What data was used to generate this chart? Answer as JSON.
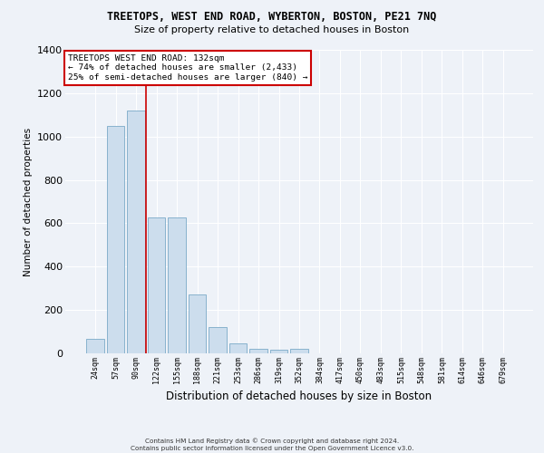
{
  "title": "TREETOPS, WEST END ROAD, WYBERTON, BOSTON, PE21 7NQ",
  "subtitle": "Size of property relative to detached houses in Boston",
  "xlabel": "Distribution of detached houses by size in Boston",
  "ylabel": "Number of detached properties",
  "bar_color": "#ccdded",
  "bar_edge_color": "#7aaac8",
  "bg_color": "#eef2f8",
  "grid_color": "#ffffff",
  "categories": [
    "24sqm",
    "57sqm",
    "90sqm",
    "122sqm",
    "155sqm",
    "188sqm",
    "221sqm",
    "253sqm",
    "286sqm",
    "319sqm",
    "352sqm",
    "384sqm",
    "417sqm",
    "450sqm",
    "483sqm",
    "515sqm",
    "548sqm",
    "581sqm",
    "614sqm",
    "646sqm",
    "679sqm"
  ],
  "values": [
    65,
    1050,
    1120,
    625,
    625,
    270,
    120,
    45,
    20,
    15,
    20,
    0,
    0,
    0,
    0,
    0,
    0,
    0,
    0,
    0,
    0
  ],
  "ylim": [
    0,
    1400
  ],
  "yticks": [
    0,
    200,
    400,
    600,
    800,
    1000,
    1200,
    1400
  ],
  "vline_index": 3,
  "vline_color": "#cc0000",
  "annotation_title": "TREETOPS WEST END ROAD: 132sqm",
  "annotation_line1": "← 74% of detached houses are smaller (2,433)",
  "annotation_line2": "25% of semi-detached houses are larger (840) →",
  "annotation_box_color": "#ffffff",
  "annotation_box_edge": "#cc0000",
  "footer_line1": "Contains HM Land Registry data © Crown copyright and database right 2024.",
  "footer_line2": "Contains public sector information licensed under the Open Government Licence v3.0."
}
